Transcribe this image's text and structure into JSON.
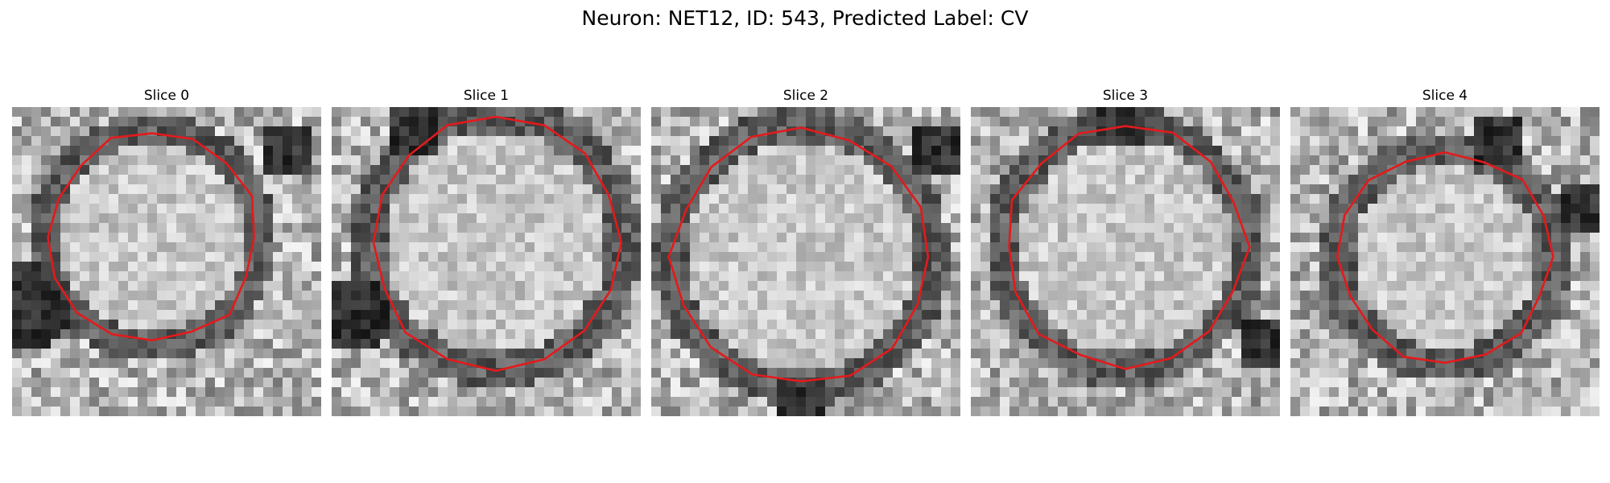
{
  "figure": {
    "title": "Neuron: NET12, ID: 543, Predicted Label: CV"
  },
  "panels": [
    {
      "title": "Slice 0"
    },
    {
      "title": "Slice 1"
    },
    {
      "title": "Slice 2"
    },
    {
      "title": "Slice 3"
    },
    {
      "title": "Slice 4"
    }
  ],
  "colors": {
    "contour": "#e31a1c",
    "background": "#ffffff"
  }
}
